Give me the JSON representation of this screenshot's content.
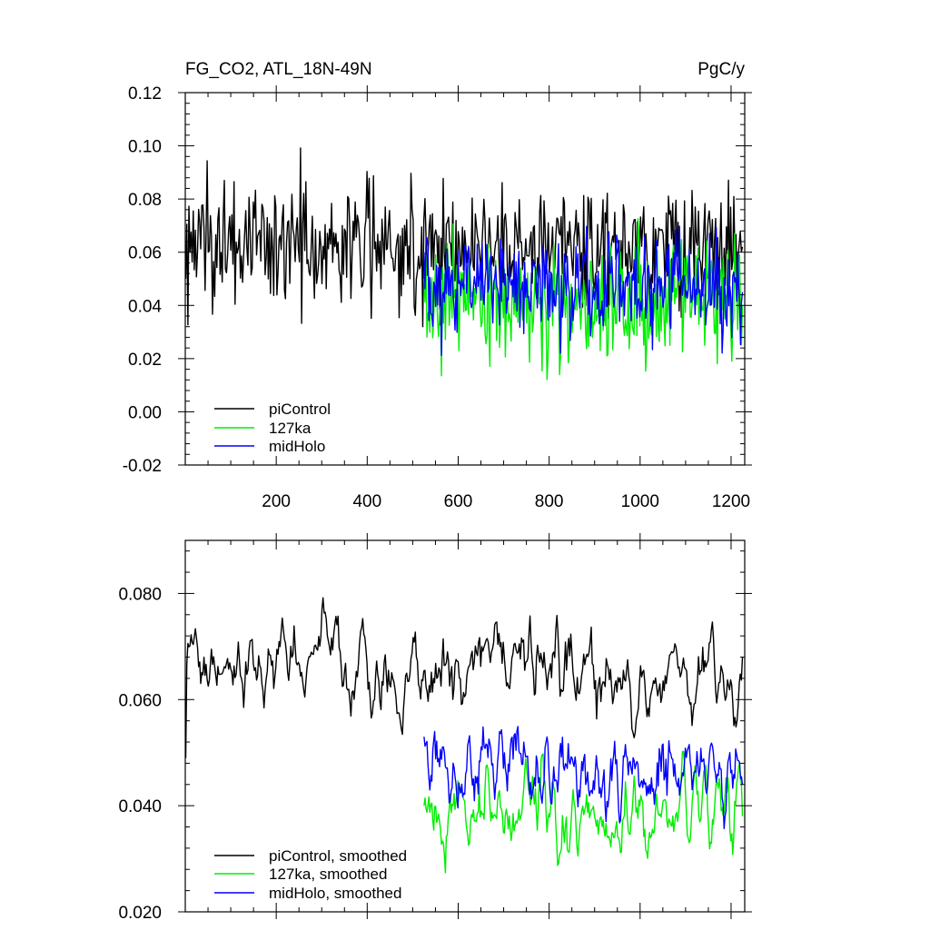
{
  "chart_data": [
    {
      "type": "line",
      "title": "FG_CO2, ATL_18N-49N",
      "units": "PgC/y",
      "xlim": [
        0,
        1230
      ],
      "ylim": [
        -0.02,
        0.12
      ],
      "x_ticks": [
        "200",
        "400",
        "600",
        "800",
        "1000",
        "1200"
      ],
      "y_ticks": [
        "-0.02",
        "0.00",
        "0.02",
        "0.04",
        "0.06",
        "0.08",
        "0.10",
        "0.12"
      ],
      "legend": [
        "piControl",
        "127ka",
        "midHolo"
      ],
      "legend_placement": "bottom-left",
      "series": [
        {
          "name": "piControl",
          "color": "#000000",
          "x_start": 1,
          "x_end": 1225,
          "n": 520,
          "mean": 0.063,
          "sd": 0.012,
          "noise": "white",
          "first": 0.05,
          "last": 0.062
        },
        {
          "name": "127ka",
          "color": "#00ee00",
          "x_start": 525,
          "x_end": 1225,
          "n": 330,
          "mean": 0.041,
          "sd": 0.011,
          "noise": "white",
          "first": 0.05,
          "last": 0.04
        },
        {
          "name": "midHolo",
          "color": "#0000ff",
          "x_start": 525,
          "x_end": 1225,
          "n": 330,
          "mean": 0.048,
          "sd": 0.01,
          "noise": "white",
          "first": 0.06,
          "last": 0.045
        }
      ]
    },
    {
      "type": "line",
      "xlim": [
        0,
        1230
      ],
      "ylim": [
        0.02,
        0.09
      ],
      "y_ticks": [
        "0.020",
        "0.040",
        "0.060",
        "0.080"
      ],
      "legend": [
        "piControl, smoothed",
        "127ka, smoothed",
        "midHolo, smoothed"
      ],
      "legend_placement": "bottom-left",
      "series": [
        {
          "name": "piControl, smoothed",
          "color": "#000000",
          "x_start": 1,
          "x_end": 1225,
          "n": 520,
          "mean": 0.065,
          "sd": 0.0045,
          "noise": "smooth",
          "first": 0.049,
          "last": 0.068
        },
        {
          "name": "127ka, smoothed",
          "color": "#00ee00",
          "x_start": 525,
          "x_end": 1225,
          "n": 330,
          "mean": 0.0395,
          "sd": 0.0045,
          "noise": "smooth",
          "first": 0.04,
          "last": 0.038
        },
        {
          "name": "midHolo, smoothed",
          "color": "#0000ff",
          "x_start": 525,
          "x_end": 1225,
          "n": 330,
          "mean": 0.047,
          "sd": 0.0045,
          "noise": "smooth",
          "first": 0.053,
          "last": 0.044
        }
      ]
    }
  ]
}
